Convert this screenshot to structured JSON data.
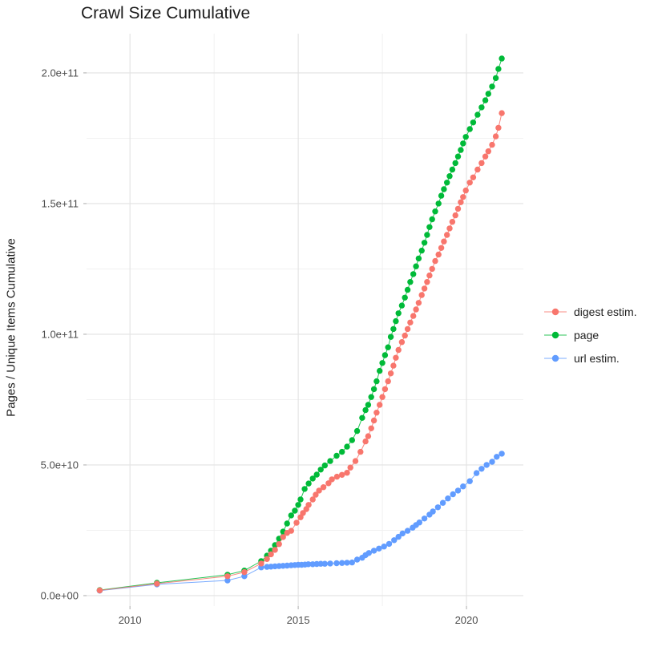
{
  "chart_data": {
    "type": "line",
    "title": "Crawl Size Cumulative",
    "xlabel": "",
    "ylabel": "Pages / Unique Items Cumulative",
    "grid": true,
    "legend_position": "right",
    "xlim": [
      2008.71,
      2021.69
    ],
    "ylim": [
      -4000000000.0,
      215000000000.0
    ],
    "x_ticks": {
      "labels": [
        "2010",
        "2015",
        "2020"
      ],
      "values": [
        2010,
        2015,
        2020
      ],
      "minor": [
        2012.5,
        2017.5
      ]
    },
    "y_ticks": {
      "labels": [
        "0.0e+00",
        "5.0e+10",
        "1.0e+11",
        "1.5e+11",
        "2.0e+11"
      ],
      "values": [
        0,
        50000000000.0,
        100000000000.0,
        150000000000.0,
        200000000000.0
      ],
      "minor": [
        25000000000.0,
        75000000000.0,
        125000000000.0,
        175000000000.0
      ]
    },
    "series": [
      {
        "name": "digest estim.",
        "color": "#F8766D",
        "points": [
          [
            2009.1,
            2000000000.0
          ],
          [
            2010.8,
            4600000000.0
          ],
          [
            2012.9,
            7400000000.0
          ],
          [
            2013.4,
            9000000000.0
          ],
          [
            2013.9,
            12300000000.0
          ],
          [
            2014.07,
            14000000000.0
          ],
          [
            2014.19,
            15800000000.0
          ],
          [
            2014.31,
            17500000000.0
          ],
          [
            2014.43,
            19700000000.0
          ],
          [
            2014.55,
            22400000000.0
          ],
          [
            2014.67,
            24000000000.0
          ],
          [
            2014.79,
            24800000000.0
          ],
          [
            2014.95,
            27900000000.0
          ],
          [
            2015.07,
            30000000000.0
          ],
          [
            2015.14,
            31600000000.0
          ],
          [
            2015.24,
            33100000000.0
          ],
          [
            2015.31,
            34700000000.0
          ],
          [
            2015.43,
            36800000000.0
          ],
          [
            2015.52,
            38600000000.0
          ],
          [
            2015.62,
            40200000000.0
          ],
          [
            2015.75,
            41500000000.0
          ],
          [
            2015.9,
            43000000000.0
          ],
          [
            2016.0,
            44500000000.0
          ],
          [
            2016.15,
            45500000000.0
          ],
          [
            2016.3,
            46200000000.0
          ],
          [
            2016.45,
            47000000000.0
          ],
          [
            2016.55,
            49000000000.0
          ],
          [
            2016.7,
            51500000000.0
          ],
          [
            2016.85,
            55000000000.0
          ],
          [
            2017.0,
            59000000000.0
          ],
          [
            2017.08,
            61000000000.0
          ],
          [
            2017.17,
            64000000000.0
          ],
          [
            2017.25,
            67000000000.0
          ],
          [
            2017.33,
            70000000000.0
          ],
          [
            2017.42,
            73000000000.0
          ],
          [
            2017.5,
            76000000000.0
          ],
          [
            2017.58,
            79000000000.0
          ],
          [
            2017.67,
            82000000000.0
          ],
          [
            2017.75,
            85000000000.0
          ],
          [
            2017.83,
            88000000000.0
          ],
          [
            2017.9,
            91000000000.0
          ],
          [
            2017.98,
            94000000000.0
          ],
          [
            2018.08,
            97000000000.0
          ],
          [
            2018.17,
            99500000000.0
          ],
          [
            2018.25,
            102000000000.0
          ],
          [
            2018.33,
            104500000000.0
          ],
          [
            2018.42,
            107000000000.0
          ],
          [
            2018.5,
            109500000000.0
          ],
          [
            2018.58,
            112000000000.0
          ],
          [
            2018.67,
            115000000000.0
          ],
          [
            2018.75,
            117500000000.0
          ],
          [
            2018.83,
            120000000000.0
          ],
          [
            2018.9,
            122500000000.0
          ],
          [
            2018.98,
            125000000000.0
          ],
          [
            2019.07,
            128000000000.0
          ],
          [
            2019.17,
            130500000000.0
          ],
          [
            2019.25,
            133000000000.0
          ],
          [
            2019.33,
            135500000000.0
          ],
          [
            2019.42,
            138000000000.0
          ],
          [
            2019.5,
            140500000000.0
          ],
          [
            2019.58,
            143000000000.0
          ],
          [
            2019.67,
            145500000000.0
          ],
          [
            2019.75,
            148000000000.0
          ],
          [
            2019.83,
            150500000000.0
          ],
          [
            2019.9,
            152500000000.0
          ],
          [
            2019.98,
            155000000000.0
          ],
          [
            2020.1,
            158000000000.0
          ],
          [
            2020.2,
            160000000000.0
          ],
          [
            2020.33,
            163000000000.0
          ],
          [
            2020.45,
            165500000000.0
          ],
          [
            2020.56,
            168000000000.0
          ],
          [
            2020.65,
            170000000000.0
          ],
          [
            2020.76,
            172500000000.0
          ],
          [
            2020.87,
            175700000000.0
          ],
          [
            2020.95,
            179000000000.0
          ],
          [
            2021.05,
            184600000000.0
          ]
        ]
      },
      {
        "name": "page",
        "color": "#00BA38",
        "points": [
          [
            2009.1,
            2100000000.0
          ],
          [
            2010.8,
            4900000000.0
          ],
          [
            2012.9,
            8000000000.0
          ],
          [
            2013.4,
            9600000000.0
          ],
          [
            2013.9,
            13200000000.0
          ],
          [
            2014.07,
            15300000000.0
          ],
          [
            2014.19,
            17200000000.0
          ],
          [
            2014.31,
            19300000000.0
          ],
          [
            2014.43,
            21800000000.0
          ],
          [
            2014.55,
            24500000000.0
          ],
          [
            2014.67,
            27600000000.0
          ],
          [
            2014.79,
            30700000000.0
          ],
          [
            2014.9,
            32500000000.0
          ],
          [
            2015.0,
            34700000000.0
          ],
          [
            2015.07,
            36800000000.0
          ],
          [
            2015.19,
            40800000000.0
          ],
          [
            2015.31,
            42900000000.0
          ],
          [
            2015.43,
            44800000000.0
          ],
          [
            2015.55,
            46300000000.0
          ],
          [
            2015.67,
            48200000000.0
          ],
          [
            2015.79,
            49800000000.0
          ],
          [
            2015.95,
            51500000000.0
          ],
          [
            2016.14,
            53500000000.0
          ],
          [
            2016.3,
            55000000000.0
          ],
          [
            2016.45,
            57000000000.0
          ],
          [
            2016.6,
            59500000000.0
          ],
          [
            2016.75,
            63000000000.0
          ],
          [
            2016.9,
            68000000000.0
          ],
          [
            2017.0,
            71000000000.0
          ],
          [
            2017.08,
            73000000000.0
          ],
          [
            2017.17,
            76000000000.0
          ],
          [
            2017.25,
            79000000000.0
          ],
          [
            2017.33,
            82000000000.0
          ],
          [
            2017.42,
            86000000000.0
          ],
          [
            2017.5,
            89000000000.0
          ],
          [
            2017.58,
            92000000000.0
          ],
          [
            2017.67,
            95000000000.0
          ],
          [
            2017.75,
            99000000000.0
          ],
          [
            2017.83,
            102000000000.0
          ],
          [
            2017.9,
            105000000000.0
          ],
          [
            2017.98,
            108000000000.0
          ],
          [
            2018.08,
            111000000000.0
          ],
          [
            2018.17,
            114000000000.0
          ],
          [
            2018.25,
            117000000000.0
          ],
          [
            2018.33,
            120000000000.0
          ],
          [
            2018.42,
            123000000000.0
          ],
          [
            2018.5,
            126000000000.0
          ],
          [
            2018.58,
            129000000000.0
          ],
          [
            2018.67,
            132000000000.0
          ],
          [
            2018.75,
            135000000000.0
          ],
          [
            2018.83,
            138000000000.0
          ],
          [
            2018.9,
            141000000000.0
          ],
          [
            2018.98,
            144000000000.0
          ],
          [
            2019.07,
            147000000000.0
          ],
          [
            2019.17,
            150000000000.0
          ],
          [
            2019.25,
            153000000000.0
          ],
          [
            2019.33,
            155500000000.0
          ],
          [
            2019.42,
            158000000000.0
          ],
          [
            2019.5,
            160500000000.0
          ],
          [
            2019.58,
            163000000000.0
          ],
          [
            2019.67,
            165500000000.0
          ],
          [
            2019.75,
            168000000000.0
          ],
          [
            2019.83,
            170500000000.0
          ],
          [
            2019.9,
            173000000000.0
          ],
          [
            2019.98,
            175500000000.0
          ],
          [
            2020.1,
            178500000000.0
          ],
          [
            2020.2,
            181000000000.0
          ],
          [
            2020.33,
            184000000000.0
          ],
          [
            2020.45,
            186800000000.0
          ],
          [
            2020.56,
            189500000000.0
          ],
          [
            2020.65,
            192000000000.0
          ],
          [
            2020.76,
            194800000000.0
          ],
          [
            2020.87,
            198000000000.0
          ],
          [
            2020.95,
            201500000000.0
          ],
          [
            2021.05,
            205500000000.0
          ]
        ]
      },
      {
        "name": "url estim.",
        "color": "#619CFF",
        "points": [
          [
            2009.1,
            1900000000.0
          ],
          [
            2010.8,
            4300000000.0
          ],
          [
            2012.9,
            5800000000.0
          ],
          [
            2013.4,
            7400000000.0
          ],
          [
            2013.9,
            10800000000.0
          ],
          [
            2014.07,
            11000000000.0
          ],
          [
            2014.19,
            11100000000.0
          ],
          [
            2014.31,
            11200000000.0
          ],
          [
            2014.43,
            11300000000.0
          ],
          [
            2014.55,
            11400000000.0
          ],
          [
            2014.67,
            11500000000.0
          ],
          [
            2014.79,
            11600000000.0
          ],
          [
            2014.9,
            11700000000.0
          ],
          [
            2015.0,
            11800000000.0
          ],
          [
            2015.1,
            11800000000.0
          ],
          [
            2015.2,
            11900000000.0
          ],
          [
            2015.3,
            12000000000.0
          ],
          [
            2015.43,
            12000000000.0
          ],
          [
            2015.55,
            12100000000.0
          ],
          [
            2015.67,
            12200000000.0
          ],
          [
            2015.79,
            12200000000.0
          ],
          [
            2015.95,
            12300000000.0
          ],
          [
            2016.14,
            12400000000.0
          ],
          [
            2016.3,
            12500000000.0
          ],
          [
            2016.45,
            12600000000.0
          ],
          [
            2016.6,
            12700000000.0
          ],
          [
            2016.75,
            13800000000.0
          ],
          [
            2016.9,
            14500000000.0
          ],
          [
            2017.0,
            15500000000.0
          ],
          [
            2017.1,
            16300000000.0
          ],
          [
            2017.25,
            17200000000.0
          ],
          [
            2017.4,
            18000000000.0
          ],
          [
            2017.55,
            18800000000.0
          ],
          [
            2017.7,
            19800000000.0
          ],
          [
            2017.85,
            21200000000.0
          ],
          [
            2017.98,
            22500000000.0
          ],
          [
            2018.1,
            23800000000.0
          ],
          [
            2018.25,
            24800000000.0
          ],
          [
            2018.4,
            26000000000.0
          ],
          [
            2018.5,
            27000000000.0
          ],
          [
            2018.6,
            28000000000.0
          ],
          [
            2018.75,
            29500000000.0
          ],
          [
            2018.9,
            31000000000.0
          ],
          [
            2019.0,
            32200000000.0
          ],
          [
            2019.15,
            33800000000.0
          ],
          [
            2019.3,
            35500000000.0
          ],
          [
            2019.45,
            37200000000.0
          ],
          [
            2019.6,
            38800000000.0
          ],
          [
            2019.75,
            40200000000.0
          ],
          [
            2019.9,
            41800000000.0
          ],
          [
            2020.1,
            43800000000.0
          ],
          [
            2020.3,
            46900000000.0
          ],
          [
            2020.45,
            48500000000.0
          ],
          [
            2020.6,
            50000000000.0
          ],
          [
            2020.76,
            51200000000.0
          ],
          [
            2020.9,
            53100000000.0
          ],
          [
            2021.05,
            54300000000.0
          ]
        ]
      }
    ],
    "style": {
      "grid_major_color": "#e2e2e2",
      "grid_minor_color": "#efefef",
      "tick_color": "#b3b3b3",
      "tick_label_color": "#4d4d4d",
      "point_radius": 3.7
    }
  }
}
